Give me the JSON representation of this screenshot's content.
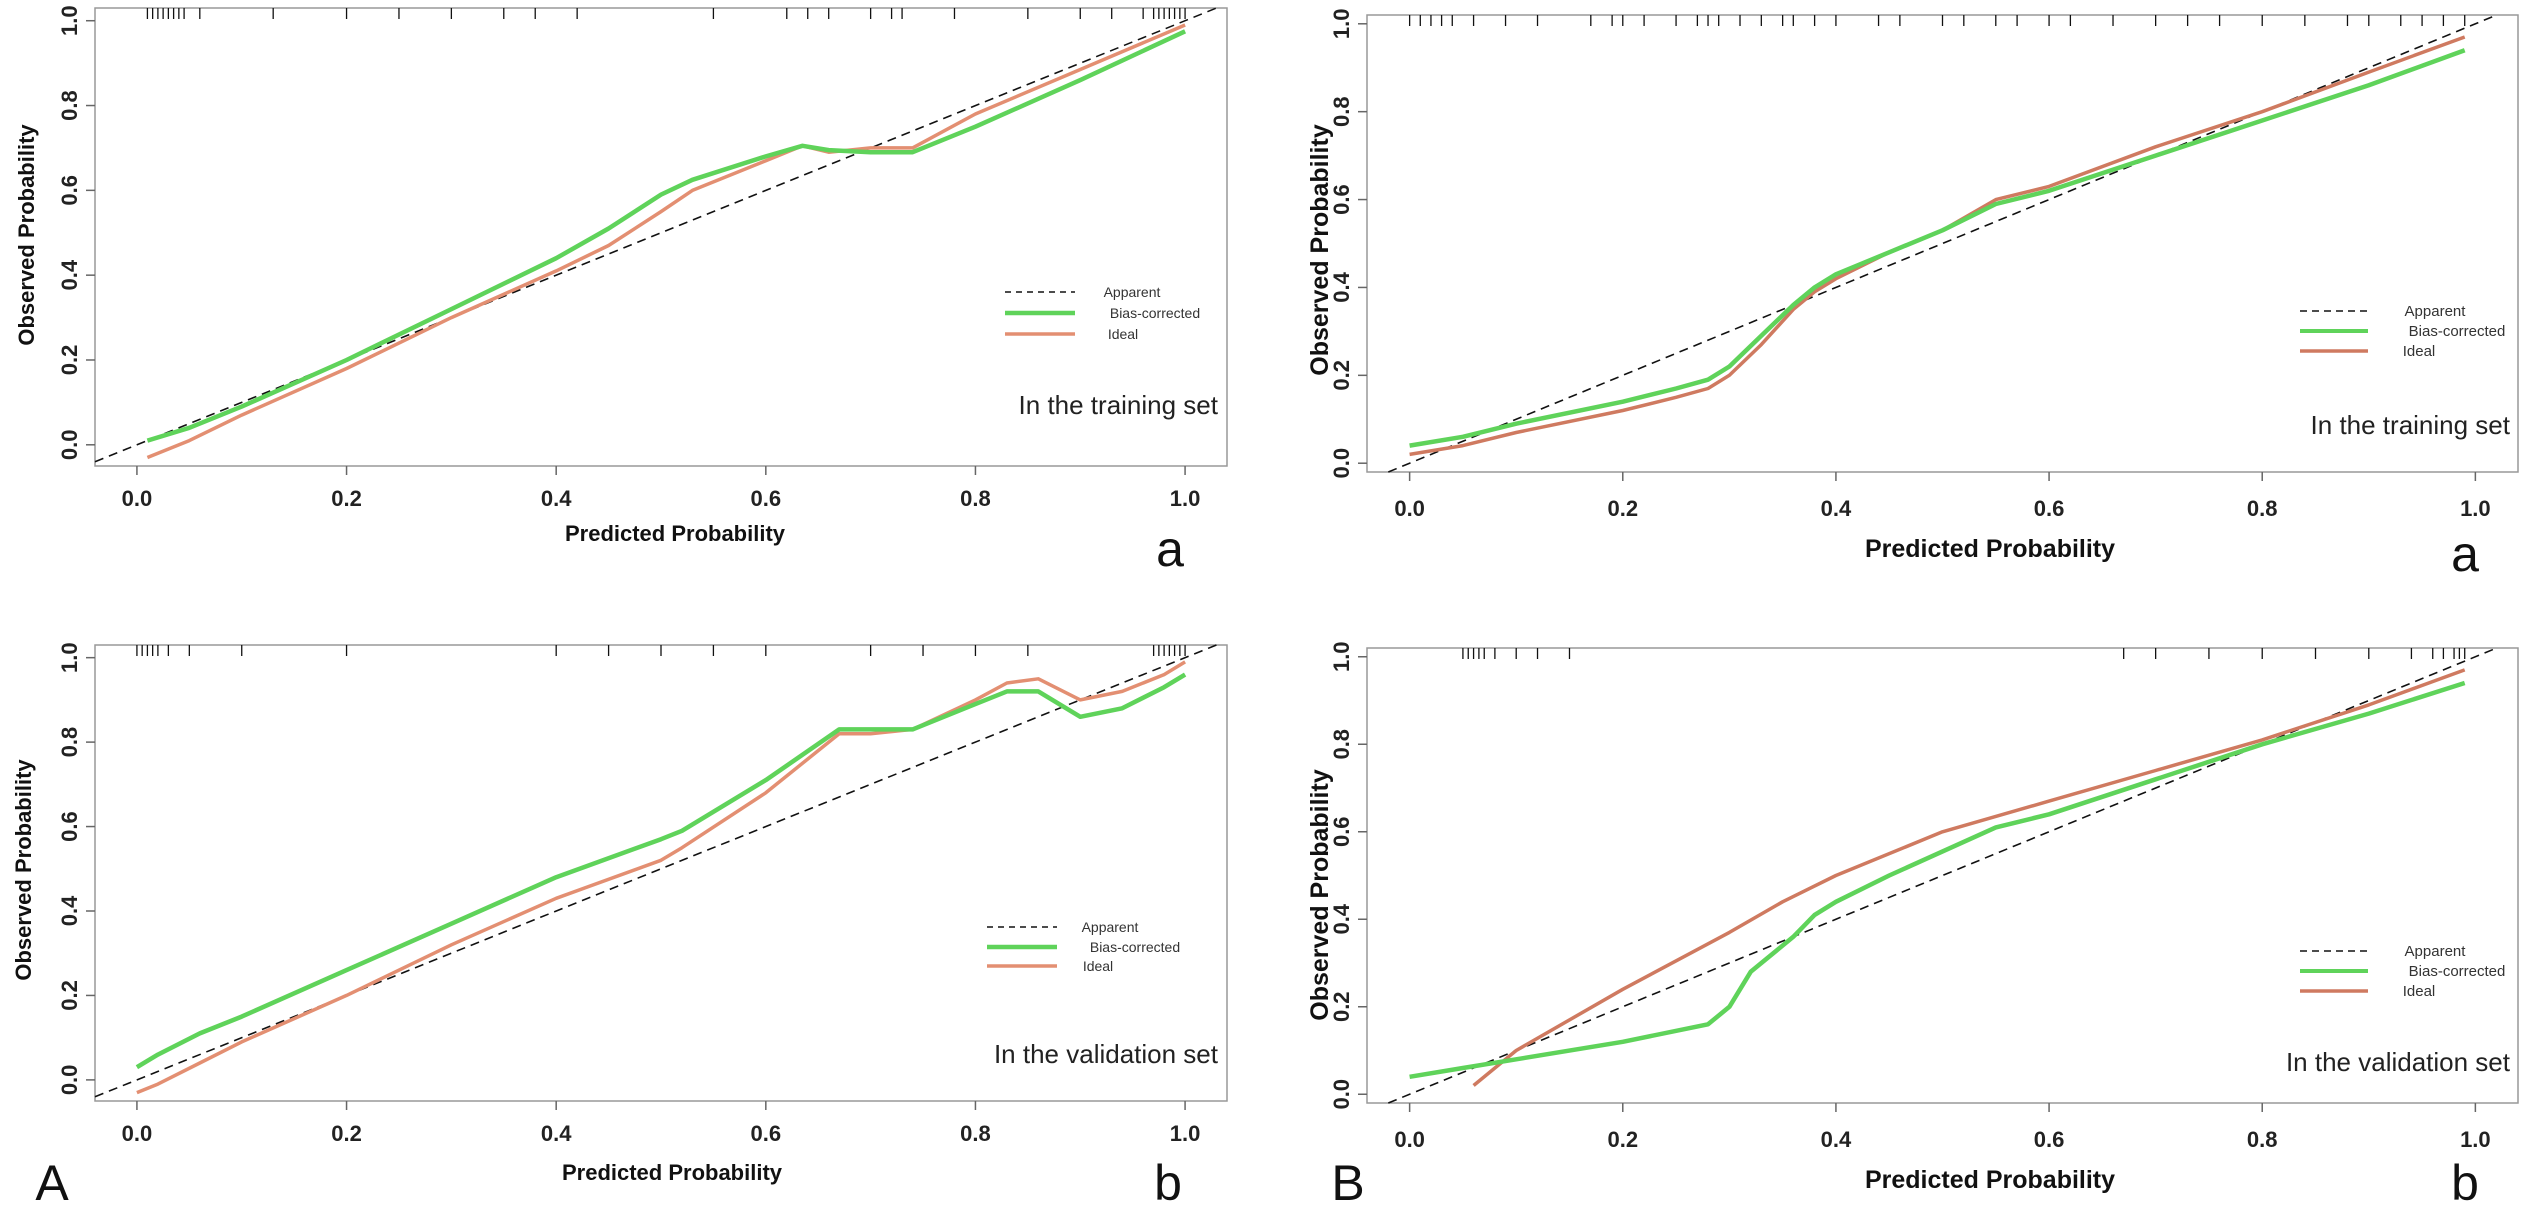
{
  "figure": {
    "panel_letters": {
      "A": "A",
      "B": "B"
    },
    "legend": {
      "apparent": "Apparent",
      "bias_corrected": "Bias-corrected",
      "ideal": "Ideal"
    },
    "colors": {
      "apparent": "#111111",
      "bias_corrected": "#5fd35a",
      "ideal": "#e38f72",
      "ideal_right": "#cf7a60"
    }
  },
  "chart_data": [
    {
      "type": "line",
      "id": "train-left",
      "set_label": "In the training set",
      "sublabel": "a",
      "xlabel": "Predicted Probability",
      "ylabel": "Observed Probability",
      "xlim": [
        -0.04,
        1.04
      ],
      "ylim": [
        -0.05,
        1.03
      ],
      "x_ticks": [
        "0.0",
        "0.2",
        "0.4",
        "0.6",
        "0.8",
        "1.0"
      ],
      "y_ticks": [
        "0.0",
        "0.2",
        "0.4",
        "0.6",
        "0.8",
        "1.0"
      ],
      "series": [
        {
          "name": "Bias-corrected",
          "x": [
            0.01,
            0.05,
            0.1,
            0.2,
            0.3,
            0.4,
            0.45,
            0.5,
            0.53,
            0.6,
            0.635,
            0.66,
            0.7,
            0.74,
            0.8,
            0.9,
            1.0
          ],
          "y": [
            0.01,
            0.04,
            0.09,
            0.2,
            0.32,
            0.44,
            0.51,
            0.59,
            0.625,
            0.68,
            0.705,
            0.695,
            0.69,
            0.69,
            0.75,
            0.86,
            0.975
          ]
        },
        {
          "name": "Ideal",
          "x": [
            0.01,
            0.05,
            0.1,
            0.2,
            0.3,
            0.4,
            0.45,
            0.5,
            0.53,
            0.6,
            0.635,
            0.66,
            0.7,
            0.74,
            0.8,
            0.9,
            1.0
          ],
          "y": [
            -0.03,
            0.01,
            0.07,
            0.18,
            0.3,
            0.41,
            0.47,
            0.55,
            0.6,
            0.67,
            0.705,
            0.69,
            0.7,
            0.7,
            0.78,
            0.885,
            0.99
          ]
        }
      ],
      "rug": [
        0.01,
        0.015,
        0.02,
        0.025,
        0.03,
        0.035,
        0.04,
        0.045,
        0.06,
        0.13,
        0.2,
        0.25,
        0.3,
        0.35,
        0.38,
        0.42,
        0.55,
        0.62,
        0.64,
        0.66,
        0.7,
        0.72,
        0.73,
        0.78,
        0.85,
        0.9,
        0.93,
        0.96,
        0.97,
        0.975,
        0.98,
        0.985,
        0.99,
        0.995,
        1.0
      ]
    },
    {
      "type": "line",
      "id": "train-right",
      "set_label": "In the training set",
      "sublabel": "a",
      "xlabel": "Predicted Probability",
      "ylabel": "Observed Probability",
      "xlim": [
        -0.04,
        1.04
      ],
      "ylim": [
        -0.02,
        1.02
      ],
      "x_ticks": [
        "0.0",
        "0.2",
        "0.4",
        "0.6",
        "0.8",
        "1.0"
      ],
      "y_ticks": [
        "0.0",
        "0.2",
        "0.4",
        "0.6",
        "0.8",
        "1.0"
      ],
      "series": [
        {
          "name": "Bias-corrected",
          "x": [
            0.0,
            0.05,
            0.1,
            0.2,
            0.25,
            0.28,
            0.3,
            0.33,
            0.36,
            0.38,
            0.4,
            0.45,
            0.5,
            0.55,
            0.6,
            0.7,
            0.8,
            0.9,
            0.99
          ],
          "y": [
            0.04,
            0.06,
            0.09,
            0.14,
            0.17,
            0.19,
            0.22,
            0.29,
            0.36,
            0.4,
            0.43,
            0.48,
            0.53,
            0.59,
            0.62,
            0.7,
            0.78,
            0.86,
            0.94
          ]
        },
        {
          "name": "Ideal",
          "x": [
            0.0,
            0.05,
            0.1,
            0.2,
            0.25,
            0.28,
            0.3,
            0.33,
            0.36,
            0.38,
            0.4,
            0.45,
            0.5,
            0.55,
            0.6,
            0.7,
            0.8,
            0.9,
            0.99
          ],
          "y": [
            0.02,
            0.04,
            0.07,
            0.12,
            0.15,
            0.17,
            0.2,
            0.27,
            0.35,
            0.39,
            0.42,
            0.48,
            0.53,
            0.6,
            0.63,
            0.72,
            0.8,
            0.89,
            0.97
          ]
        }
      ],
      "rug": [
        0.0,
        0.01,
        0.02,
        0.03,
        0.04,
        0.06,
        0.09,
        0.12,
        0.17,
        0.19,
        0.2,
        0.22,
        0.25,
        0.27,
        0.28,
        0.29,
        0.31,
        0.33,
        0.35,
        0.36,
        0.38,
        0.4,
        0.44,
        0.46,
        0.5,
        0.52,
        0.55,
        0.57,
        0.6,
        0.62,
        0.66,
        0.7,
        0.73,
        0.76,
        0.8,
        0.84,
        0.88,
        0.9,
        0.93,
        0.95,
        0.97,
        0.99
      ]
    },
    {
      "type": "line",
      "id": "val-left",
      "set_label": "In the validation set",
      "sublabel": "b",
      "xlabel": "Predicted Probability",
      "ylabel": "Observed Probability",
      "xlim": [
        -0.04,
        1.04
      ],
      "ylim": [
        -0.05,
        1.03
      ],
      "x_ticks": [
        "0.0",
        "0.2",
        "0.4",
        "0.6",
        "0.8",
        "1.0"
      ],
      "y_ticks": [
        "0.0",
        "0.2",
        "0.4",
        "0.6",
        "0.8",
        "1.0"
      ],
      "series": [
        {
          "name": "Bias-corrected",
          "x": [
            0.0,
            0.02,
            0.06,
            0.1,
            0.2,
            0.3,
            0.4,
            0.5,
            0.52,
            0.6,
            0.67,
            0.7,
            0.74,
            0.8,
            0.83,
            0.86,
            0.9,
            0.94,
            0.98,
            1.0
          ],
          "y": [
            0.03,
            0.06,
            0.11,
            0.15,
            0.26,
            0.37,
            0.48,
            0.57,
            0.59,
            0.71,
            0.83,
            0.83,
            0.83,
            0.89,
            0.92,
            0.92,
            0.86,
            0.88,
            0.93,
            0.96
          ]
        },
        {
          "name": "Ideal",
          "x": [
            0.0,
            0.02,
            0.06,
            0.1,
            0.2,
            0.3,
            0.4,
            0.5,
            0.52,
            0.6,
            0.67,
            0.7,
            0.74,
            0.8,
            0.83,
            0.86,
            0.9,
            0.94,
            0.98,
            1.0
          ],
          "y": [
            -0.03,
            -0.01,
            0.04,
            0.09,
            0.2,
            0.32,
            0.43,
            0.52,
            0.55,
            0.68,
            0.82,
            0.82,
            0.83,
            0.9,
            0.94,
            0.95,
            0.9,
            0.92,
            0.96,
            0.99
          ]
        }
      ],
      "rug": [
        0.0,
        0.005,
        0.01,
        0.015,
        0.02,
        0.03,
        0.05,
        0.1,
        0.2,
        0.4,
        0.45,
        0.5,
        0.55,
        0.6,
        0.7,
        0.75,
        0.8,
        0.85,
        0.97,
        0.975,
        0.98,
        0.985,
        0.99,
        0.995,
        1.0
      ]
    },
    {
      "type": "line",
      "id": "val-right",
      "set_label": "In the validation set",
      "sublabel": "b",
      "xlabel": "Predicted Probability",
      "ylabel": "Observed Probability",
      "xlim": [
        -0.04,
        1.04
      ],
      "ylim": [
        -0.02,
        1.02
      ],
      "x_ticks": [
        "0.0",
        "0.2",
        "0.4",
        "0.6",
        "0.8",
        "1.0"
      ],
      "y_ticks": [
        "0.0",
        "0.2",
        "0.4",
        "0.6",
        "0.8",
        "1.0"
      ],
      "series": [
        {
          "name": "Bias-corrected",
          "x": [
            0.0,
            0.05,
            0.1,
            0.2,
            0.28,
            0.3,
            0.32,
            0.36,
            0.38,
            0.4,
            0.45,
            0.55,
            0.6,
            0.7,
            0.8,
            0.9,
            0.99
          ],
          "y": [
            0.04,
            0.06,
            0.08,
            0.12,
            0.16,
            0.2,
            0.28,
            0.36,
            0.41,
            0.44,
            0.5,
            0.61,
            0.64,
            0.72,
            0.8,
            0.87,
            0.94
          ]
        },
        {
          "name": "Ideal",
          "x": [
            0.06,
            0.1,
            0.2,
            0.3,
            0.35,
            0.4,
            0.5,
            0.6,
            0.7,
            0.8,
            0.9,
            0.99
          ],
          "y": [
            0.02,
            0.1,
            0.24,
            0.37,
            0.44,
            0.5,
            0.6,
            0.67,
            0.74,
            0.81,
            0.89,
            0.97
          ]
        }
      ],
      "rug": [
        0.05,
        0.055,
        0.06,
        0.065,
        0.07,
        0.08,
        0.1,
        0.12,
        0.15,
        0.67,
        0.7,
        0.75,
        0.8,
        0.85,
        0.9,
        0.94,
        0.96,
        0.97,
        0.98,
        0.985,
        0.99
      ]
    }
  ]
}
